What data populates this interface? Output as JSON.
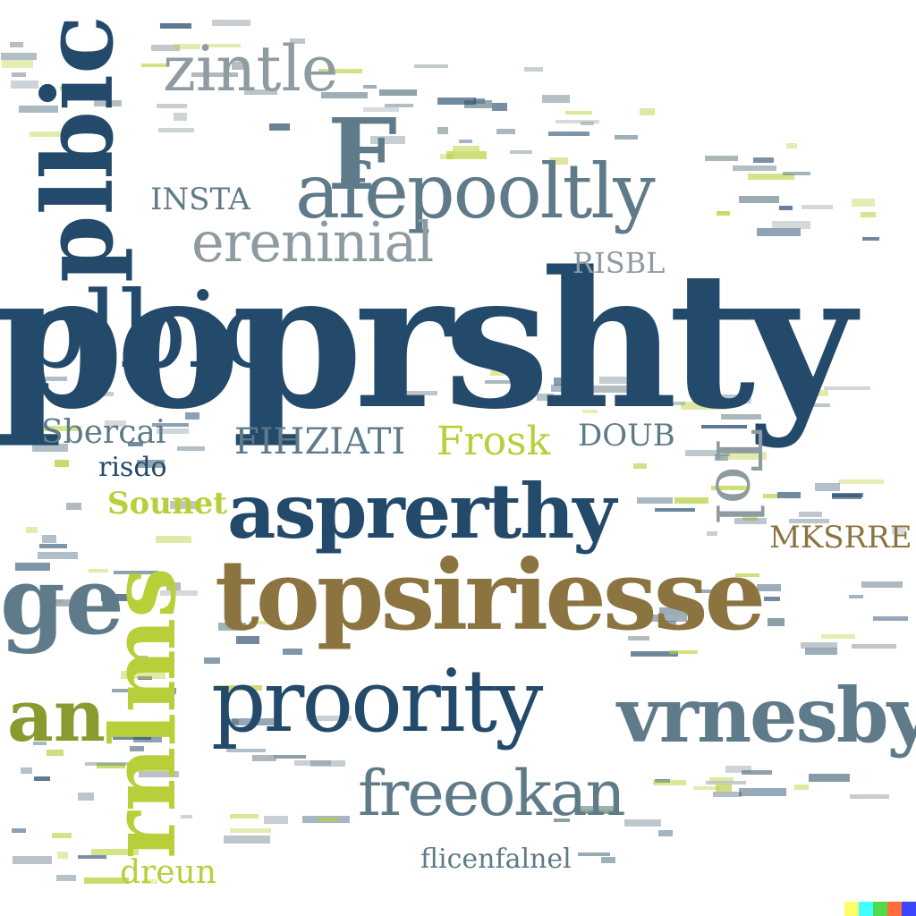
{
  "words": {
    "poprshty": "poprshty",
    "asprerthy": "asprerthy",
    "toposiriesse": "topsiriesse",
    "proority": "proority",
    "vrnesby": "vrnesby",
    "freeokan": "freeokan",
    "afepoolitly": "afepooltly",
    "ereninial": "ereninial",
    "zintle": "zintle",
    "plbic": "plbic",
    "ge": "ge",
    "an": "an",
    "fhtcam": "FIHZIATI",
    "frosk": "Frosk",
    "sbercai": "Sbercai",
    "risdo": "risdo",
    "sounet": "Sounet",
    "mksrre": "MKSRRE",
    "vertical_lime": "rnlms",
    "vertical_gray": "Tol",
    "dreun": "dreun",
    "bottom_small": "flicenfalnel",
    "big_f": "F",
    "insta": "INSTA",
    "risbl": "RISBL",
    "doub": "DOUB"
  },
  "colors": {
    "navy": "#234a6b",
    "slate": "#5f7a88",
    "gold": "#8c7440",
    "lime": "#b8cf3a",
    "gray": "#8e9ba1"
  },
  "watermark": {
    "colors": [
      "#ffff66",
      "#42ffff",
      "#51da4c",
      "#ff6e3c",
      "#3c46ff"
    ]
  }
}
